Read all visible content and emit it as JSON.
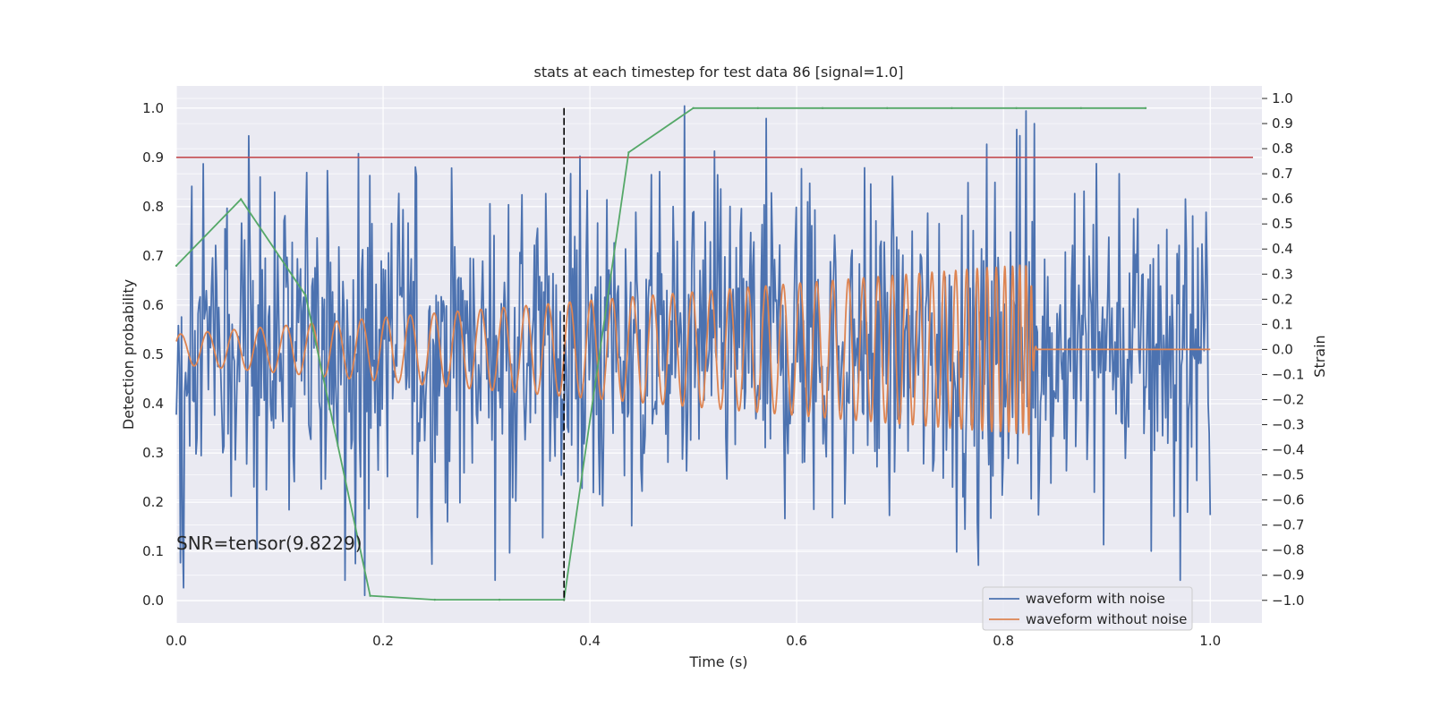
{
  "chart_data": {
    "type": "line",
    "title": "stats at each timestep for test data 86 [signal=1.0]",
    "xlabel": "Time (s)",
    "ylabel": "Detection probability",
    "ylabel_right": "Strain",
    "xlim": [
      0.0,
      1.05
    ],
    "ylim": [
      -0.045,
      1.045
    ],
    "ylim_right": [
      -1.09,
      1.05
    ],
    "x_ticks": [
      "0.0",
      "0.2",
      "0.4",
      "0.6",
      "0.8",
      "1.0"
    ],
    "y_ticks": [
      "0.0",
      "0.1",
      "0.2",
      "0.3",
      "0.4",
      "0.5",
      "0.6",
      "0.7",
      "0.8",
      "0.9",
      "1.0"
    ],
    "y_ticks_right": [
      "−1.0",
      "−0.9",
      "−0.8",
      "−0.7",
      "−0.6",
      "−0.5",
      "−0.4",
      "−0.3",
      "−0.2",
      "−0.1",
      "0.0",
      "0.1",
      "0.2",
      "0.3",
      "0.4",
      "0.5",
      "0.6",
      "0.7",
      "0.8",
      "0.9",
      "1.0"
    ],
    "grid": true,
    "legend_position": "lower-right",
    "legend": [
      "waveform with noise",
      "waveform without noise"
    ],
    "annotation": "SNR=tensor(9.8229)",
    "threshold": 0.9,
    "merger_time": 0.375,
    "colors": {
      "noisy": "#4c72b0",
      "clean": "#dd8452",
      "probability": "#55a868",
      "threshold": "#c44e52",
      "marker": "#000000",
      "background": "#eaeaf2",
      "grid": "#ffffff"
    },
    "series": [
      {
        "axis": "left",
        "x": [
          0.0,
          0.0625,
          0.125,
          0.1875,
          0.25,
          0.3125,
          0.375,
          0.4375,
          0.5,
          0.5625,
          0.625,
          0.6875,
          0.75,
          0.8125,
          0.875,
          0.9375
        ],
        "values": [
          0.68,
          0.815,
          0.62,
          0.01,
          0.002,
          0.002,
          0.002,
          0.91,
          1.0,
          1.0,
          1.0,
          1.0,
          1.0,
          1.0,
          1.0,
          1.0
        ]
      },
      {
        "name": "waveform without noise",
        "axis": "right",
        "x": [
          0.0,
          0.826,
          0.828,
          0.83,
          0.833,
          1.0
        ],
        "envelope": [
          0.06,
          0.34,
          0.18,
          0.02,
          0.0,
          0.0
        ],
        "cycles": 60
      },
      {
        "name": "waveform with noise",
        "axis": "right",
        "x": [
          0.0,
          1.0
        ],
        "std": 0.33,
        "samples": 1000,
        "peaks": [
          {
            "x": 0.004,
            "y": -0.85
          },
          {
            "x": 0.007,
            "y": -0.95
          },
          {
            "x": 0.015,
            "y": 0.65
          },
          {
            "x": 0.176,
            "y": 0.78
          },
          {
            "x": 0.182,
            "y": -0.98
          },
          {
            "x": 0.39,
            "y": 0.77
          },
          {
            "x": 0.491,
            "y": 0.97
          },
          {
            "x": 0.605,
            "y": 0.72
          },
          {
            "x": 0.776,
            "y": -0.86
          },
          {
            "x": 0.822,
            "y": 0.95
          },
          {
            "x": 0.83,
            "y": 0.9
          },
          {
            "x": 0.89,
            "y": 0.74
          }
        ]
      }
    ]
  }
}
